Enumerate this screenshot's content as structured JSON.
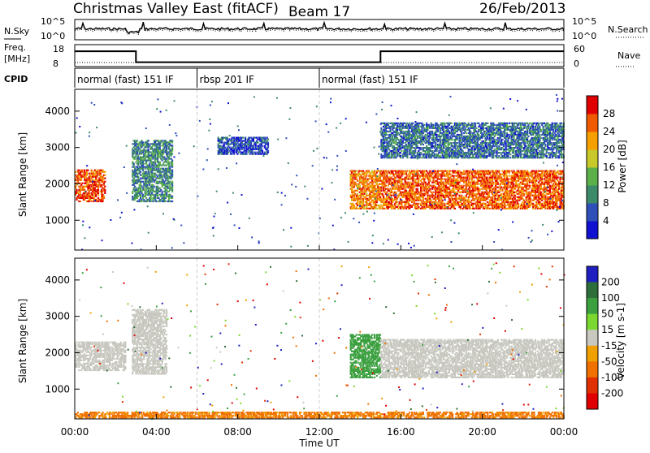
{
  "header": {
    "title": "Christmas Valley East (fitACF)",
    "beam": "Beam 17",
    "date": "26/Feb/2013"
  },
  "summary": {
    "nsky_label": "N.Sky",
    "nsky_ticks": [
      "10^5",
      "10^0"
    ],
    "nsearch_label": "N.Search",
    "nsearch_ticks": [
      "10^5",
      "10^0"
    ],
    "freq_label_1": "Freq.",
    "freq_label_2": "[MHz]",
    "freq_ticks": [
      "18",
      "8"
    ],
    "nave_label": "Nave",
    "nave_ticks": [
      "60",
      "0"
    ],
    "cpid_label": "CPID",
    "cpid_segments": [
      {
        "label": "normal (fast) 151 IF",
        "start": 0,
        "end": 6
      },
      {
        "label": "rbsp 201 IF",
        "start": 6,
        "end": 12
      },
      {
        "label": "normal (fast) 151 IF",
        "start": 12,
        "end": 24
      }
    ],
    "freq_hours": [
      0,
      3,
      3,
      15,
      15,
      24
    ],
    "freq_values": [
      15,
      15,
      10,
      10,
      15,
      15
    ],
    "nave_values": [
      11,
      11,
      12,
      12,
      11,
      11
    ]
  },
  "chart_data": [
    {
      "type": "heatmap",
      "panel": "power",
      "ylabel": "Slant Range [km]",
      "y_ticks": [
        "1000",
        "2000",
        "3000",
        "4000"
      ],
      "ylim": [
        180,
        4600
      ],
      "xlim": [
        0,
        24
      ],
      "colorbar_label": "Power [dB]",
      "colorbar_ticks": [
        "4",
        "8",
        "12",
        "16",
        "20",
        "24",
        "28"
      ],
      "colorbar_range": [
        0,
        32
      ],
      "colors": [
        "#1010d0",
        "#2e4fb8",
        "#3d8a6a",
        "#5bb04a",
        "#c8c82a",
        "#f5a000",
        "#f05a00",
        "#e00000"
      ],
      "regions": [
        {
          "t": [
            0.0,
            1.5
          ],
          "r": [
            1500,
            2400
          ],
          "v": 27
        },
        {
          "t": [
            2.8,
            4.8
          ],
          "r": [
            1500,
            3200
          ],
          "v": 10
        },
        {
          "t": [
            13.5,
            15.0
          ],
          "r": [
            1300,
            2400
          ],
          "v": 24
        },
        {
          "t": [
            15.0,
            24.0
          ],
          "r": [
            1300,
            2400
          ],
          "v": 26
        },
        {
          "t": [
            15.0,
            24.0
          ],
          "r": [
            2700,
            3700
          ],
          "v": 8
        },
        {
          "t": [
            7.0,
            9.5
          ],
          "r": [
            2800,
            3300
          ],
          "v": 5
        }
      ]
    },
    {
      "type": "heatmap",
      "panel": "velocity",
      "ylabel": "Slant Range [km]",
      "y_ticks": [
        "1000",
        "2000",
        "3000",
        "4000"
      ],
      "ylim": [
        180,
        4600
      ],
      "xlim": [
        0,
        24
      ],
      "x_ticks": [
        "00:00",
        "04:00",
        "08:00",
        "12:00",
        "16:00",
        "20:00",
        "00:00"
      ],
      "xlabel": "Time UT",
      "colorbar_label": "Velocity [m s-1]",
      "colorbar_ticks": [
        "200",
        "100",
        "50",
        "15",
        "-15",
        "-50",
        "-100",
        "-200"
      ],
      "colors": [
        "#2020c0",
        "#2e6e3a",
        "#3ca040",
        "#7ad830",
        "#c8c8c0",
        "#f0a000",
        "#f07000",
        "#e03000",
        "#e00000"
      ],
      "regions": [
        {
          "t": [
            0.0,
            2.5
          ],
          "r": [
            1500,
            2300
          ],
          "v": 0
        },
        {
          "t": [
            2.8,
            4.5
          ],
          "r": [
            1400,
            3200
          ],
          "v": 0
        },
        {
          "t": [
            13.5,
            15.0
          ],
          "r": [
            1300,
            2500
          ],
          "v": 60
        },
        {
          "t": [
            15.0,
            24.0
          ],
          "r": [
            1300,
            2400
          ],
          "v": 0
        },
        {
          "t": [
            0.0,
            24.0
          ],
          "r": [
            200,
            400
          ],
          "v": -40
        }
      ]
    }
  ]
}
